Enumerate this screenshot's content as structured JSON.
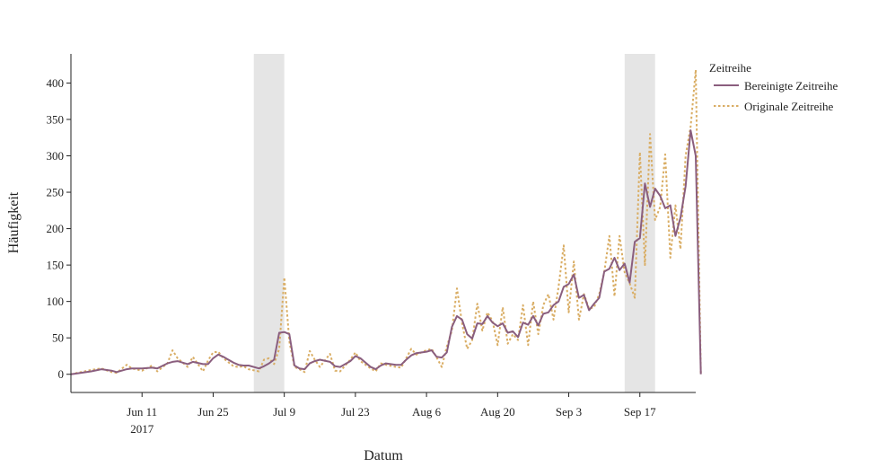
{
  "chart_data": {
    "type": "line",
    "title": "",
    "xlabel": "Datum",
    "ylabel": "Häufigkeit",
    "x_start": "2017-05-28",
    "x_end": "2017-09-28",
    "xlim": [
      "2017-05-28",
      "2017-09-28"
    ],
    "ylim": [
      -25,
      440
    ],
    "yticks": [
      0,
      50,
      100,
      150,
      200,
      250,
      300,
      350,
      400
    ],
    "xticks": [
      {
        "date": "2017-06-11",
        "label": "Jun 11",
        "sublabel": "2017"
      },
      {
        "date": "2017-06-25",
        "label": "Jun 25",
        "sublabel": ""
      },
      {
        "date": "2017-07-09",
        "label": "Jul 9",
        "sublabel": ""
      },
      {
        "date": "2017-07-23",
        "label": "Jul 23",
        "sublabel": ""
      },
      {
        "date": "2017-08-06",
        "label": "Aug 6",
        "sublabel": ""
      },
      {
        "date": "2017-08-20",
        "label": "Aug 20",
        "sublabel": ""
      },
      {
        "date": "2017-09-03",
        "label": "Sep 3",
        "sublabel": ""
      },
      {
        "date": "2017-09-17",
        "label": "Sep 17",
        "sublabel": ""
      }
    ],
    "shaded_regions": [
      {
        "start": "2017-07-03",
        "end": "2017-07-09"
      },
      {
        "start": "2017-09-14",
        "end": "2017-09-20"
      }
    ],
    "legend": {
      "title": "Zeitreihe",
      "placement": "right"
    },
    "series": [
      {
        "name": "Bereinigte Zeitreihe",
        "color": "#8a5e7e",
        "dash": "solid",
        "points": [
          [
            "2017-05-28",
            0
          ],
          [
            "2017-05-30",
            2
          ],
          [
            "2017-06-01",
            4
          ],
          [
            "2017-06-03",
            7
          ],
          [
            "2017-06-05",
            5
          ],
          [
            "2017-06-06",
            3
          ],
          [
            "2017-06-08",
            7
          ],
          [
            "2017-06-09",
            8
          ],
          [
            "2017-06-11",
            8
          ],
          [
            "2017-06-13",
            9
          ],
          [
            "2017-06-14",
            8
          ],
          [
            "2017-06-16",
            15
          ],
          [
            "2017-06-17",
            17
          ],
          [
            "2017-06-18",
            18
          ],
          [
            "2017-06-20",
            14
          ],
          [
            "2017-06-21",
            17
          ],
          [
            "2017-06-23",
            14
          ],
          [
            "2017-06-24",
            14
          ],
          [
            "2017-06-25",
            22
          ],
          [
            "2017-06-26",
            27
          ],
          [
            "2017-06-27",
            24
          ],
          [
            "2017-06-29",
            16
          ],
          [
            "2017-06-30",
            13
          ],
          [
            "2017-07-01",
            12
          ],
          [
            "2017-07-02",
            12
          ],
          [
            "2017-07-04",
            8
          ],
          [
            "2017-07-05",
            11
          ],
          [
            "2017-07-06",
            15
          ],
          [
            "2017-07-07",
            20
          ],
          [
            "2017-07-08",
            57
          ],
          [
            "2017-07-09",
            58
          ],
          [
            "2017-07-10",
            55
          ],
          [
            "2017-07-11",
            12
          ],
          [
            "2017-07-12",
            8
          ],
          [
            "2017-07-13",
            7
          ],
          [
            "2017-07-14",
            15
          ],
          [
            "2017-07-15",
            18
          ],
          [
            "2017-07-16",
            20
          ],
          [
            "2017-07-18",
            17
          ],
          [
            "2017-07-19",
            11
          ],
          [
            "2017-07-20",
            10
          ],
          [
            "2017-07-22",
            18
          ],
          [
            "2017-07-23",
            25
          ],
          [
            "2017-07-24",
            22
          ],
          [
            "2017-07-26",
            10
          ],
          [
            "2017-07-27",
            7
          ],
          [
            "2017-07-28",
            12
          ],
          [
            "2017-07-29",
            15
          ],
          [
            "2017-07-31",
            13
          ],
          [
            "2017-08-01",
            13
          ],
          [
            "2017-08-02",
            20
          ],
          [
            "2017-08-03",
            26
          ],
          [
            "2017-08-04",
            29
          ],
          [
            "2017-08-06",
            31
          ],
          [
            "2017-08-07",
            33
          ],
          [
            "2017-08-08",
            24
          ],
          [
            "2017-08-09",
            23
          ],
          [
            "2017-08-10",
            30
          ],
          [
            "2017-08-11",
            65
          ],
          [
            "2017-08-12",
            80
          ],
          [
            "2017-08-13",
            75
          ],
          [
            "2017-08-14",
            55
          ],
          [
            "2017-08-15",
            49
          ],
          [
            "2017-08-16",
            70
          ],
          [
            "2017-08-17",
            69
          ],
          [
            "2017-08-18",
            80
          ],
          [
            "2017-08-19",
            71
          ],
          [
            "2017-08-20",
            66
          ],
          [
            "2017-08-21",
            70
          ],
          [
            "2017-08-22",
            57
          ],
          [
            "2017-08-23",
            59
          ],
          [
            "2017-08-24",
            51
          ],
          [
            "2017-08-25",
            71
          ],
          [
            "2017-08-26",
            68
          ],
          [
            "2017-08-27",
            80
          ],
          [
            "2017-08-28",
            67
          ],
          [
            "2017-08-29",
            83
          ],
          [
            "2017-08-30",
            85
          ],
          [
            "2017-08-31",
            95
          ],
          [
            "2017-09-01",
            100
          ],
          [
            "2017-09-02",
            120
          ],
          [
            "2017-09-03",
            124
          ],
          [
            "2017-09-04",
            137
          ],
          [
            "2017-09-05",
            105
          ],
          [
            "2017-09-06",
            109
          ],
          [
            "2017-09-07",
            88
          ],
          [
            "2017-09-08",
            97
          ],
          [
            "2017-09-09",
            105
          ],
          [
            "2017-09-10",
            141
          ],
          [
            "2017-09-11",
            145
          ],
          [
            "2017-09-12",
            160
          ],
          [
            "2017-09-13",
            143
          ],
          [
            "2017-09-14",
            152
          ],
          [
            "2017-09-15",
            126
          ],
          [
            "2017-09-16",
            182
          ],
          [
            "2017-09-17",
            187
          ],
          [
            "2017-09-18",
            262
          ],
          [
            "2017-09-19",
            230
          ],
          [
            "2017-09-20",
            255
          ],
          [
            "2017-09-21",
            245
          ],
          [
            "2017-09-22",
            228
          ],
          [
            "2017-09-23",
            232
          ],
          [
            "2017-09-24",
            190
          ],
          [
            "2017-09-25",
            215
          ],
          [
            "2017-09-26",
            258
          ],
          [
            "2017-09-27",
            335
          ],
          [
            "2017-09-28",
            300
          ],
          [
            "2017-09-29",
            0
          ]
        ]
      },
      {
        "name": "Originale Zeitreihe",
        "color": "#d9ad64",
        "dash": "dotted",
        "points": [
          [
            "2017-05-28",
            0
          ],
          [
            "2017-05-30",
            3
          ],
          [
            "2017-06-01",
            6
          ],
          [
            "2017-06-03",
            8
          ],
          [
            "2017-06-05",
            3
          ],
          [
            "2017-06-06",
            2
          ],
          [
            "2017-06-08",
            13
          ],
          [
            "2017-06-09",
            8
          ],
          [
            "2017-06-11",
            5
          ],
          [
            "2017-06-13",
            12
          ],
          [
            "2017-06-14",
            4
          ],
          [
            "2017-06-16",
            15
          ],
          [
            "2017-06-17",
            33
          ],
          [
            "2017-06-18",
            22
          ],
          [
            "2017-06-20",
            10
          ],
          [
            "2017-06-21",
            24
          ],
          [
            "2017-06-23",
            4
          ],
          [
            "2017-06-24",
            19
          ],
          [
            "2017-06-25",
            30
          ],
          [
            "2017-06-26",
            31
          ],
          [
            "2017-06-27",
            22
          ],
          [
            "2017-06-29",
            11
          ],
          [
            "2017-06-30",
            10
          ],
          [
            "2017-07-01",
            11
          ],
          [
            "2017-07-02",
            7
          ],
          [
            "2017-07-04",
            4
          ],
          [
            "2017-07-05",
            20
          ],
          [
            "2017-07-06",
            22
          ],
          [
            "2017-07-07",
            14
          ],
          [
            "2017-07-08",
            35
          ],
          [
            "2017-07-09",
            133
          ],
          [
            "2017-07-10",
            45
          ],
          [
            "2017-07-11",
            10
          ],
          [
            "2017-07-12",
            7
          ],
          [
            "2017-07-13",
            3
          ],
          [
            "2017-07-14",
            32
          ],
          [
            "2017-07-15",
            20
          ],
          [
            "2017-07-16",
            10
          ],
          [
            "2017-07-18",
            28
          ],
          [
            "2017-07-19",
            5
          ],
          [
            "2017-07-20",
            4
          ],
          [
            "2017-07-22",
            20
          ],
          [
            "2017-07-23",
            30
          ],
          [
            "2017-07-24",
            18
          ],
          [
            "2017-07-26",
            8
          ],
          [
            "2017-07-27",
            4
          ],
          [
            "2017-07-28",
            15
          ],
          [
            "2017-07-29",
            13
          ],
          [
            "2017-07-31",
            10
          ],
          [
            "2017-08-01",
            9
          ],
          [
            "2017-08-02",
            22
          ],
          [
            "2017-08-03",
            35
          ],
          [
            "2017-08-04",
            27
          ],
          [
            "2017-08-06",
            33
          ],
          [
            "2017-08-07",
            35
          ],
          [
            "2017-08-08",
            23
          ],
          [
            "2017-08-09",
            10
          ],
          [
            "2017-08-10",
            38
          ],
          [
            "2017-08-11",
            60
          ],
          [
            "2017-08-12",
            118
          ],
          [
            "2017-08-13",
            70
          ],
          [
            "2017-08-14",
            35
          ],
          [
            "2017-08-15",
            47
          ],
          [
            "2017-08-16",
            97
          ],
          [
            "2017-08-17",
            60
          ],
          [
            "2017-08-18",
            85
          ],
          [
            "2017-08-19",
            73
          ],
          [
            "2017-08-20",
            40
          ],
          [
            "2017-08-21",
            92
          ],
          [
            "2017-08-22",
            42
          ],
          [
            "2017-08-23",
            55
          ],
          [
            "2017-08-24",
            47
          ],
          [
            "2017-08-25",
            95
          ],
          [
            "2017-08-26",
            40
          ],
          [
            "2017-08-27",
            100
          ],
          [
            "2017-08-28",
            55
          ],
          [
            "2017-08-29",
            95
          ],
          [
            "2017-08-30",
            110
          ],
          [
            "2017-08-31",
            75
          ],
          [
            "2017-09-01",
            120
          ],
          [
            "2017-09-02",
            177
          ],
          [
            "2017-09-03",
            85
          ],
          [
            "2017-09-04",
            155
          ],
          [
            "2017-09-05",
            75
          ],
          [
            "2017-09-06",
            110
          ],
          [
            "2017-09-07",
            90
          ],
          [
            "2017-09-08",
            92
          ],
          [
            "2017-09-09",
            110
          ],
          [
            "2017-09-10",
            140
          ],
          [
            "2017-09-11",
            190
          ],
          [
            "2017-09-12",
            107
          ],
          [
            "2017-09-13",
            190
          ],
          [
            "2017-09-14",
            140
          ],
          [
            "2017-09-15",
            125
          ],
          [
            "2017-09-16",
            105
          ],
          [
            "2017-09-17",
            305
          ],
          [
            "2017-09-18",
            150
          ],
          [
            "2017-09-19",
            330
          ],
          [
            "2017-09-20",
            212
          ],
          [
            "2017-09-21",
            230
          ],
          [
            "2017-09-22",
            302
          ],
          [
            "2017-09-23",
            160
          ],
          [
            "2017-09-24",
            232
          ],
          [
            "2017-09-25",
            172
          ],
          [
            "2017-09-26",
            300
          ],
          [
            "2017-09-27",
            340
          ],
          [
            "2017-09-28",
            418
          ],
          [
            "2017-09-29",
            0
          ]
        ]
      }
    ]
  }
}
